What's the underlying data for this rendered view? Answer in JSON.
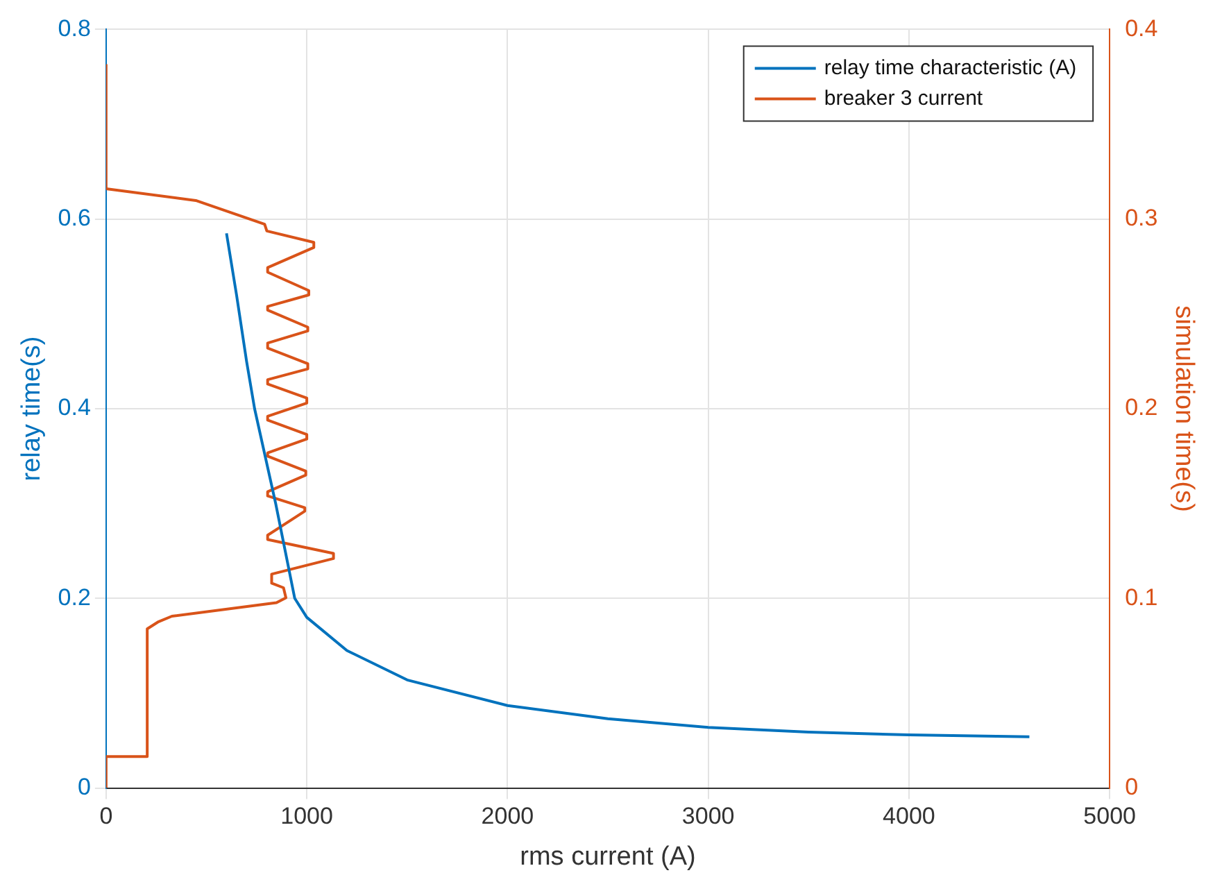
{
  "chart_data": {
    "type": "line",
    "xlabel": "rms current (A)",
    "ylabel": "relay time(s)",
    "y2label": "simulation time(s)",
    "xlim": [
      0,
      5000
    ],
    "xticks": [
      0,
      1000,
      2000,
      3000,
      4000,
      5000
    ],
    "ylim": [
      0,
      0.8
    ],
    "yticks": [
      0,
      0.2,
      0.4,
      0.6,
      0.8
    ],
    "y2lim": [
      0,
      0.4
    ],
    "y2ticks": [
      0,
      0.1,
      0.2,
      0.3,
      0.4
    ],
    "grid": true,
    "legend": "top right",
    "series": [
      {
        "name": "relay time characteristic (A)",
        "color": "#0072bd",
        "x": [
          600,
          650,
          700,
          740,
          845,
          940,
          1000,
          1200,
          1500,
          2000,
          2500,
          3000,
          3500,
          4000,
          4600
        ],
        "values": [
          0.585,
          0.52,
          0.45,
          0.4,
          0.3,
          0.2,
          0.18,
          0.145,
          0.114,
          0.087,
          0.073,
          0.064,
          0.059,
          0.056,
          0.054
        ]
      },
      {
        "name": "breaker 3 current",
        "color": "#d95319",
        "axis": "y2",
        "x": [
          0,
          0,
          205,
          205,
          258,
          328,
          849,
          896,
          884,
          825,
          825,
          1133,
          1133,
          805,
          805,
          990,
          990,
          805,
          805,
          995,
          995,
          805,
          805,
          1000,
          1000,
          805,
          805,
          1000,
          1000,
          805,
          805,
          1005,
          1005,
          805,
          805,
          1005,
          1005,
          805,
          805,
          1010,
          1010,
          805,
          805,
          1035,
          1035,
          801,
          790,
          447,
          0,
          0
        ],
        "values": [
          0,
          0.0166,
          0.0166,
          0.0839,
          0.0875,
          0.0906,
          0.0977,
          0.1003,
          0.1056,
          0.108,
          0.1128,
          0.121,
          0.1237,
          0.131,
          0.1333,
          0.146,
          0.1478,
          0.154,
          0.1562,
          0.165,
          0.1671,
          0.175,
          0.1767,
          0.184,
          0.1864,
          0.194,
          0.196,
          0.203,
          0.2056,
          0.213,
          0.2153,
          0.221,
          0.2237,
          0.232,
          0.2346,
          0.241,
          0.243,
          0.252,
          0.2539,
          0.26,
          0.2623,
          0.272,
          0.2744,
          0.285,
          0.2877,
          0.2937,
          0.2973,
          0.3098,
          0.316,
          0.3817
        ]
      }
    ]
  }
}
